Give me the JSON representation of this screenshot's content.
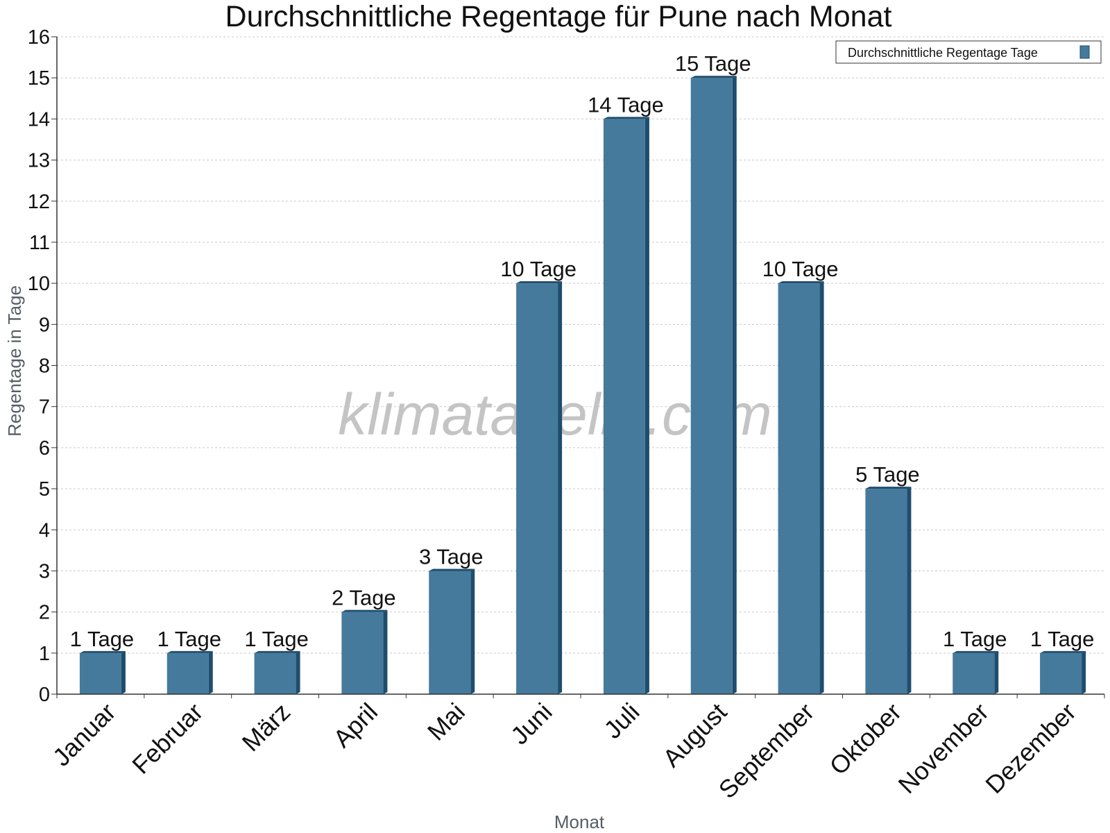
{
  "chart_data": {
    "type": "bar",
    "title": "Durchschnittliche Regentage für Pune nach Monat",
    "xlabel": "Monat",
    "ylabel": "Regentage in Tage",
    "categories": [
      "Januar",
      "Februar",
      "März",
      "April",
      "Mai",
      "Juni",
      "Juli",
      "August",
      "September",
      "Oktober",
      "November",
      "Dezember"
    ],
    "series": [
      {
        "name": "Durchschnittliche Regentage Tage",
        "values": [
          1,
          1,
          1,
          2,
          3,
          10,
          14,
          15,
          10,
          5,
          1,
          1
        ],
        "labels": [
          "1 Tage",
          "1 Tage",
          "1 Tage",
          "2 Tage",
          "3 Tage",
          "10 Tage",
          "14 Tage",
          "15 Tage",
          "10 Tage",
          "5 Tage",
          "1 Tage",
          "1 Tage"
        ],
        "color": "#457a9c"
      }
    ],
    "ylim": [
      0,
      16
    ],
    "yticks": [
      0,
      1,
      2,
      3,
      4,
      5,
      6,
      7,
      8,
      9,
      10,
      11,
      12,
      13,
      14,
      15,
      16
    ],
    "grid": true,
    "legend_position": "top-right"
  },
  "watermark": "klimatabelle.com",
  "colors": {
    "bar": "#457a9c",
    "bar_side": "#1e4d6e",
    "grid": "#c9c9c9",
    "axis": "#333333"
  }
}
